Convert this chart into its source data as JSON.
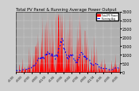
{
  "title": "Total PV Panel & Running Average Power Output",
  "bg_color": "#d0d0d0",
  "plot_bg_color": "#b0b0b0",
  "grid_color": "#ffffff",
  "bar_color": "#ff0000",
  "avg_color": "#0000ff",
  "ylim": [
    0,
    3500
  ],
  "xlim": [
    0,
    400
  ],
  "ylabel_fontsize": 3.5,
  "xlabel_fontsize": 3,
  "title_fontsize": 3.8,
  "yticks": [
    0,
    500,
    1000,
    1500,
    2000,
    2500,
    3000,
    3500
  ],
  "num_points": 400
}
